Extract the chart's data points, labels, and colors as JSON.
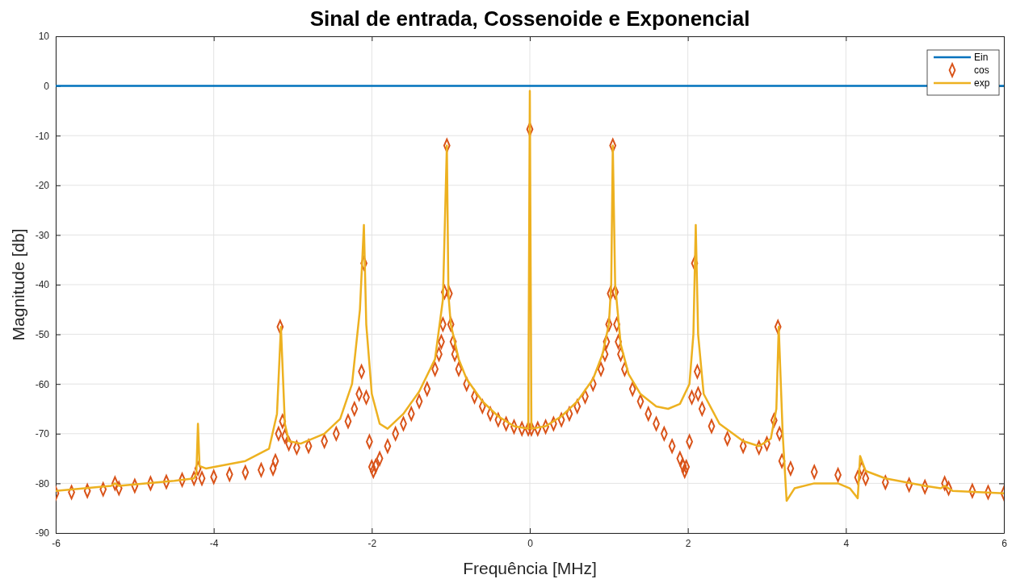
{
  "chart_data": {
    "type": "line",
    "title": "Sinal de entrada, Cossenoide e Exponencial",
    "xlabel": "Frequência [MHz]",
    "ylabel": "Magnitude [db]",
    "xlim": [
      -6,
      6
    ],
    "xticks": [
      -6,
      -4,
      -2,
      0,
      2,
      4,
      6
    ],
    "ylim": [
      -90,
      10
    ],
    "yticks": [
      -90,
      -80,
      -70,
      -60,
      -50,
      -40,
      -30,
      -20,
      -10,
      0,
      10
    ],
    "grid": true,
    "legend": "top right",
    "series": [
      {
        "name": "Ein",
        "color": "#0072bd",
        "marker": "none",
        "x": [
          -6,
          6
        ],
        "values": [
          0,
          0
        ]
      },
      {
        "name": "cos",
        "type": "scatter",
        "color": "#d95319",
        "marker": "diamond",
        "x": [
          -6,
          -5.8,
          -5.6,
          -5.4,
          -5.25,
          -5.2,
          -5.0,
          -4.8,
          -4.6,
          -4.4,
          -4.25,
          -4.2,
          -4.15,
          -4.0,
          -3.8,
          -3.6,
          -3.4,
          -3.25,
          -3.22,
          -3.18,
          -3.16,
          -3.13,
          -3.1,
          -3.05,
          -2.95,
          -2.8,
          -2.6,
          -2.45,
          -2.3,
          -2.22,
          -2.16,
          -2.13,
          -2.1,
          -2.07,
          -2.03,
          -2.0,
          -1.98,
          -1.95,
          -1.9,
          -1.8,
          -1.7,
          -1.6,
          -1.5,
          -1.4,
          -1.3,
          -1.2,
          -1.15,
          -1.12,
          -1.1,
          -1.08,
          -1.05,
          -1.02,
          -1.0,
          -0.97,
          -0.95,
          -0.9,
          -0.8,
          -0.7,
          -0.6,
          -0.5,
          -0.4,
          -0.3,
          -0.2,
          -0.1,
          -0.02,
          0,
          0.02,
          0.1,
          0.2,
          0.3,
          0.4,
          0.5,
          0.6,
          0.7,
          0.8,
          0.9,
          0.95,
          0.97,
          1.0,
          1.02,
          1.05,
          1.08,
          1.1,
          1.12,
          1.15,
          1.2,
          1.3,
          1.4,
          1.5,
          1.6,
          1.7,
          1.8,
          1.9,
          1.94,
          1.96,
          1.98,
          2.02,
          2.05,
          2.085,
          2.12,
          2.13,
          2.18,
          2.3,
          2.5,
          2.7,
          2.9,
          3.0,
          3.09,
          3.14,
          3.16,
          3.19,
          3.3,
          3.6,
          3.9,
          4.15,
          4.2,
          4.25,
          4.5,
          4.8,
          5.0,
          5.25,
          5.3,
          5.6,
          5.8,
          6
        ],
        "values": [
          -82,
          -81.8,
          -81.5,
          -81.2,
          -80,
          -81,
          -80.5,
          -80,
          -79.7,
          -79.3,
          -79,
          -77,
          -79,
          -78.7,
          -78.2,
          -77.8,
          -77.3,
          -77,
          -75.5,
          -70,
          -48.5,
          -67.5,
          -70.5,
          -72,
          -72.8,
          -72.5,
          -71.5,
          -70,
          -67.5,
          -65,
          -62,
          -57.5,
          -35.7,
          -62.7,
          -71.6,
          -76.7,
          -77.5,
          -76.5,
          -75,
          -72.5,
          -70,
          -68,
          -66,
          -63.5,
          -61,
          -57,
          -54,
          -51.5,
          -48,
          -41.5,
          -12,
          -41.8,
          -48,
          -51.5,
          -54,
          -57,
          -60,
          -62.5,
          -64.5,
          -66,
          -67.2,
          -68,
          -68.6,
          -69,
          -69,
          -8.7,
          -69,
          -69,
          -68.6,
          -68,
          -67.2,
          -66,
          -64.5,
          -62.5,
          -60,
          -57,
          -54,
          -51.5,
          -48,
          -41.8,
          -12,
          -41.5,
          -48,
          -51.5,
          -54,
          -57,
          -61,
          -63.5,
          -66,
          -68,
          -70,
          -72.5,
          -75,
          -76.5,
          -77.5,
          -76.7,
          -71.6,
          -62.7,
          -35.7,
          -57.5,
          -62,
          -65,
          -68.5,
          -71,
          -72.5,
          -72.8,
          -72,
          -67.3,
          -48.5,
          -70,
          -75.5,
          -77,
          -77.7,
          -78.3,
          -78.8,
          -77,
          -79,
          -79.8,
          -80.3,
          -80.7,
          -80,
          -81,
          -81.5,
          -81.8,
          -82
        ]
      },
      {
        "name": "exp",
        "color": "#edb120",
        "marker": "none",
        "x": [
          -6,
          -5.3,
          -5.25,
          -5.2,
          -4.5,
          -4.25,
          -4.22,
          -4.2,
          -4.18,
          -4.1,
          -3.6,
          -3.3,
          -3.2,
          -3.15,
          -3.1,
          -3.05,
          -2.9,
          -2.6,
          -2.4,
          -2.25,
          -2.15,
          -2.1,
          -2.07,
          -2.0,
          -1.9,
          -1.8,
          -1.6,
          -1.4,
          -1.2,
          -1.1,
          -1.05,
          -1.03,
          -1.0,
          -0.9,
          -0.8,
          -0.6,
          -0.4,
          -0.2,
          -0.02,
          0,
          0.02,
          0.2,
          0.4,
          0.6,
          0.8,
          0.92,
          1.0,
          1.03,
          1.05,
          1.08,
          1.15,
          1.25,
          1.4,
          1.6,
          1.75,
          1.9,
          2.02,
          2.07,
          2.1,
          2.13,
          2.2,
          2.4,
          2.7,
          2.9,
          3.05,
          3.12,
          3.15,
          3.2,
          3.25,
          3.35,
          3.6,
          3.9,
          4.05,
          4.15,
          4.18,
          4.25,
          4.5,
          5.0,
          5.2,
          5.25,
          5.35,
          6
        ],
        "values": [
          -81.5,
          -80.5,
          -80,
          -80.5,
          -79.5,
          -79,
          -78,
          -68,
          -76.5,
          -77,
          -75.5,
          -73,
          -66,
          -48.5,
          -68,
          -71.5,
          -72,
          -70,
          -67,
          -60,
          -45,
          -28,
          -48,
          -62,
          -68,
          -69,
          -66,
          -61.5,
          -55,
          -43,
          -12,
          -42,
          -48,
          -55,
          -59,
          -63.5,
          -66.5,
          -68.5,
          -69,
          -1,
          -69,
          -68.5,
          -66.5,
          -63.5,
          -59,
          -54,
          -48,
          -40,
          -12,
          -40,
          -52,
          -58,
          -62,
          -64.5,
          -65,
          -64,
          -60,
          -50,
          -28,
          -50,
          -62,
          -68,
          -71.5,
          -72.5,
          -71,
          -65,
          -48.5,
          -70,
          -83.5,
          -81,
          -80,
          -80,
          -81,
          -83,
          -74.5,
          -77.5,
          -79,
          -80.5,
          -81,
          -80.5,
          -81.5,
          -82
        ]
      }
    ]
  }
}
